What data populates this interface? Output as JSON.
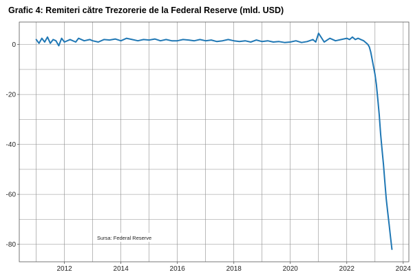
{
  "chart_data": {
    "type": "line",
    "title": "Grafic 4: Remiteri către Trezorerie de la Federal Reserve (mld. USD)",
    "xlabel": "",
    "ylabel": "",
    "xlim": [
      2010.4,
      2024.2
    ],
    "ylim": [
      -87,
      9
    ],
    "x_ticks": [
      2012,
      2014,
      2016,
      2018,
      2020,
      2022,
      2024
    ],
    "x_tick_labels": [
      "2012",
      "2014",
      "2016",
      "2018",
      "2020",
      "2022",
      "2024"
    ],
    "y_ticks": [
      0,
      -20,
      -40,
      -60,
      -80
    ],
    "y_tick_labels": [
      "0",
      "-20",
      "-40",
      "-60",
      "-80"
    ],
    "grid": true,
    "annotation": "Sursa: Federal Reserve",
    "series": [
      {
        "name": "Remiteri",
        "color": "#1f77b4",
        "x": [
          2011.0,
          2011.1,
          2011.2,
          2011.3,
          2011.4,
          2011.5,
          2011.6,
          2011.7,
          2011.8,
          2011.9,
          2012.0,
          2012.2,
          2012.4,
          2012.5,
          2012.7,
          2012.9,
          2013.0,
          2013.2,
          2013.4,
          2013.6,
          2013.8,
          2014.0,
          2014.2,
          2014.4,
          2014.6,
          2014.8,
          2015.0,
          2015.2,
          2015.4,
          2015.6,
          2015.8,
          2016.0,
          2016.2,
          2016.4,
          2016.6,
          2016.8,
          2017.0,
          2017.2,
          2017.4,
          2017.6,
          2017.8,
          2018.0,
          2018.2,
          2018.4,
          2018.6,
          2018.8,
          2019.0,
          2019.2,
          2019.4,
          2019.6,
          2019.8,
          2020.0,
          2020.2,
          2020.4,
          2020.6,
          2020.8,
          2020.9,
          2021.0,
          2021.2,
          2021.4,
          2021.6,
          2021.8,
          2022.0,
          2022.1,
          2022.2,
          2022.3,
          2022.4,
          2022.5,
          2022.6,
          2022.7,
          2022.75,
          2022.8,
          2022.85,
          2022.9,
          2023.0,
          2023.05,
          2023.1,
          2023.15,
          2023.2,
          2023.25,
          2023.3,
          2023.35,
          2023.4,
          2023.45,
          2023.5,
          2023.55,
          2023.6
        ],
        "y": [
          2.0,
          0.5,
          2.5,
          1.0,
          3.0,
          0.5,
          2.0,
          1.5,
          -0.5,
          2.5,
          1.0,
          2.0,
          1.0,
          2.5,
          1.5,
          2.0,
          1.5,
          1.0,
          2.0,
          1.8,
          2.2,
          1.5,
          2.5,
          2.0,
          1.5,
          2.0,
          1.8,
          2.2,
          1.5,
          2.0,
          1.5,
          1.5,
          2.0,
          1.8,
          1.5,
          2.0,
          1.5,
          1.8,
          1.2,
          1.5,
          2.0,
          1.5,
          1.2,
          1.5,
          1.0,
          1.8,
          1.2,
          1.5,
          1.0,
          1.2,
          0.8,
          1.0,
          1.5,
          0.8,
          1.2,
          2.0,
          1.0,
          4.5,
          1.0,
          2.5,
          1.5,
          2.0,
          2.5,
          2.0,
          3.0,
          2.0,
          2.5,
          2.0,
          1.5,
          0.5,
          0,
          -1,
          -3,
          -6,
          -12,
          -16,
          -22,
          -28,
          -36,
          -42,
          -48,
          -55,
          -62,
          -67,
          -72,
          -77,
          -82
        ]
      }
    ]
  }
}
